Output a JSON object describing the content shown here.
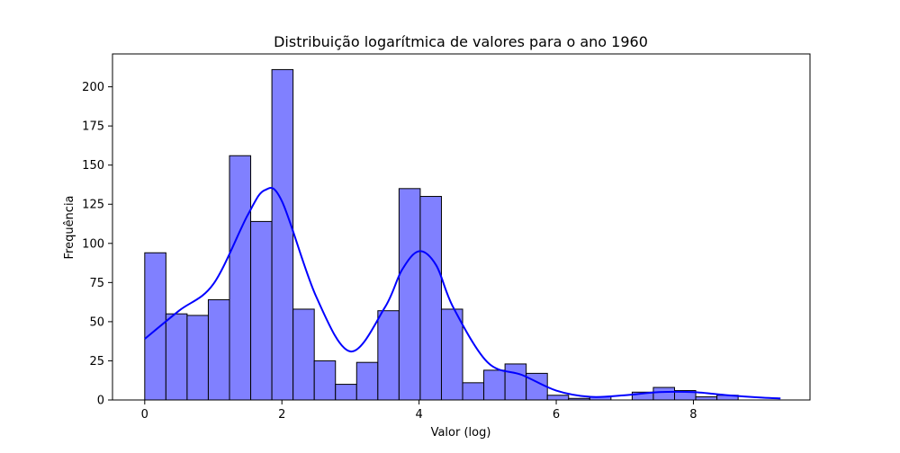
{
  "chart_data": {
    "type": "bar",
    "title": "Distribuição logarítmica de valores para o ano 1960",
    "xlabel": "Valor (log)",
    "ylabel": "Frequência",
    "xlim": [
      -0.47,
      9.7
    ],
    "ylim": [
      0,
      221
    ],
    "xticks": [
      0,
      2,
      4,
      6,
      8
    ],
    "yticks": [
      0,
      25,
      50,
      75,
      100,
      125,
      150,
      175,
      200
    ],
    "grid": false,
    "bin_edges": [
      0,
      0.309,
      0.618,
      0.927,
      1.236,
      1.545,
      1.854,
      2.163,
      2.472,
      2.781,
      3.09,
      3.399,
      3.708,
      4.017,
      4.326,
      4.635,
      4.944,
      5.253,
      5.562,
      5.871,
      6.18,
      6.489,
      6.798,
      7.107,
      7.416,
      7.725,
      8.034,
      8.343,
      8.652,
      8.961,
      9.27
    ],
    "counts": [
      94,
      55,
      54,
      64,
      156,
      114,
      211,
      58,
      25,
      10,
      24,
      57,
      135,
      130,
      58,
      11,
      19,
      23,
      17,
      3,
      1,
      2,
      0,
      5,
      8,
      6,
      2,
      3,
      0,
      0
    ],
    "kde_x": [
      0,
      0.5,
      1.0,
      1.5,
      1.75,
      2.0,
      2.5,
      3.0,
      3.5,
      3.75,
      4.0,
      4.25,
      4.5,
      5.0,
      5.5,
      6.0,
      6.5,
      7.0,
      7.5,
      8.0,
      8.5,
      9.0,
      9.27
    ],
    "kde_y": [
      39,
      57,
      74,
      118,
      134,
      127,
      66,
      31,
      59,
      83,
      95,
      86,
      59,
      24,
      16,
      6,
      2,
      3,
      5,
      5,
      3,
      1.5,
      1
    ],
    "colors": {
      "bar_fill": "#8080ff",
      "bar_edge": "#000000",
      "kde_line": "#0000ff"
    }
  }
}
